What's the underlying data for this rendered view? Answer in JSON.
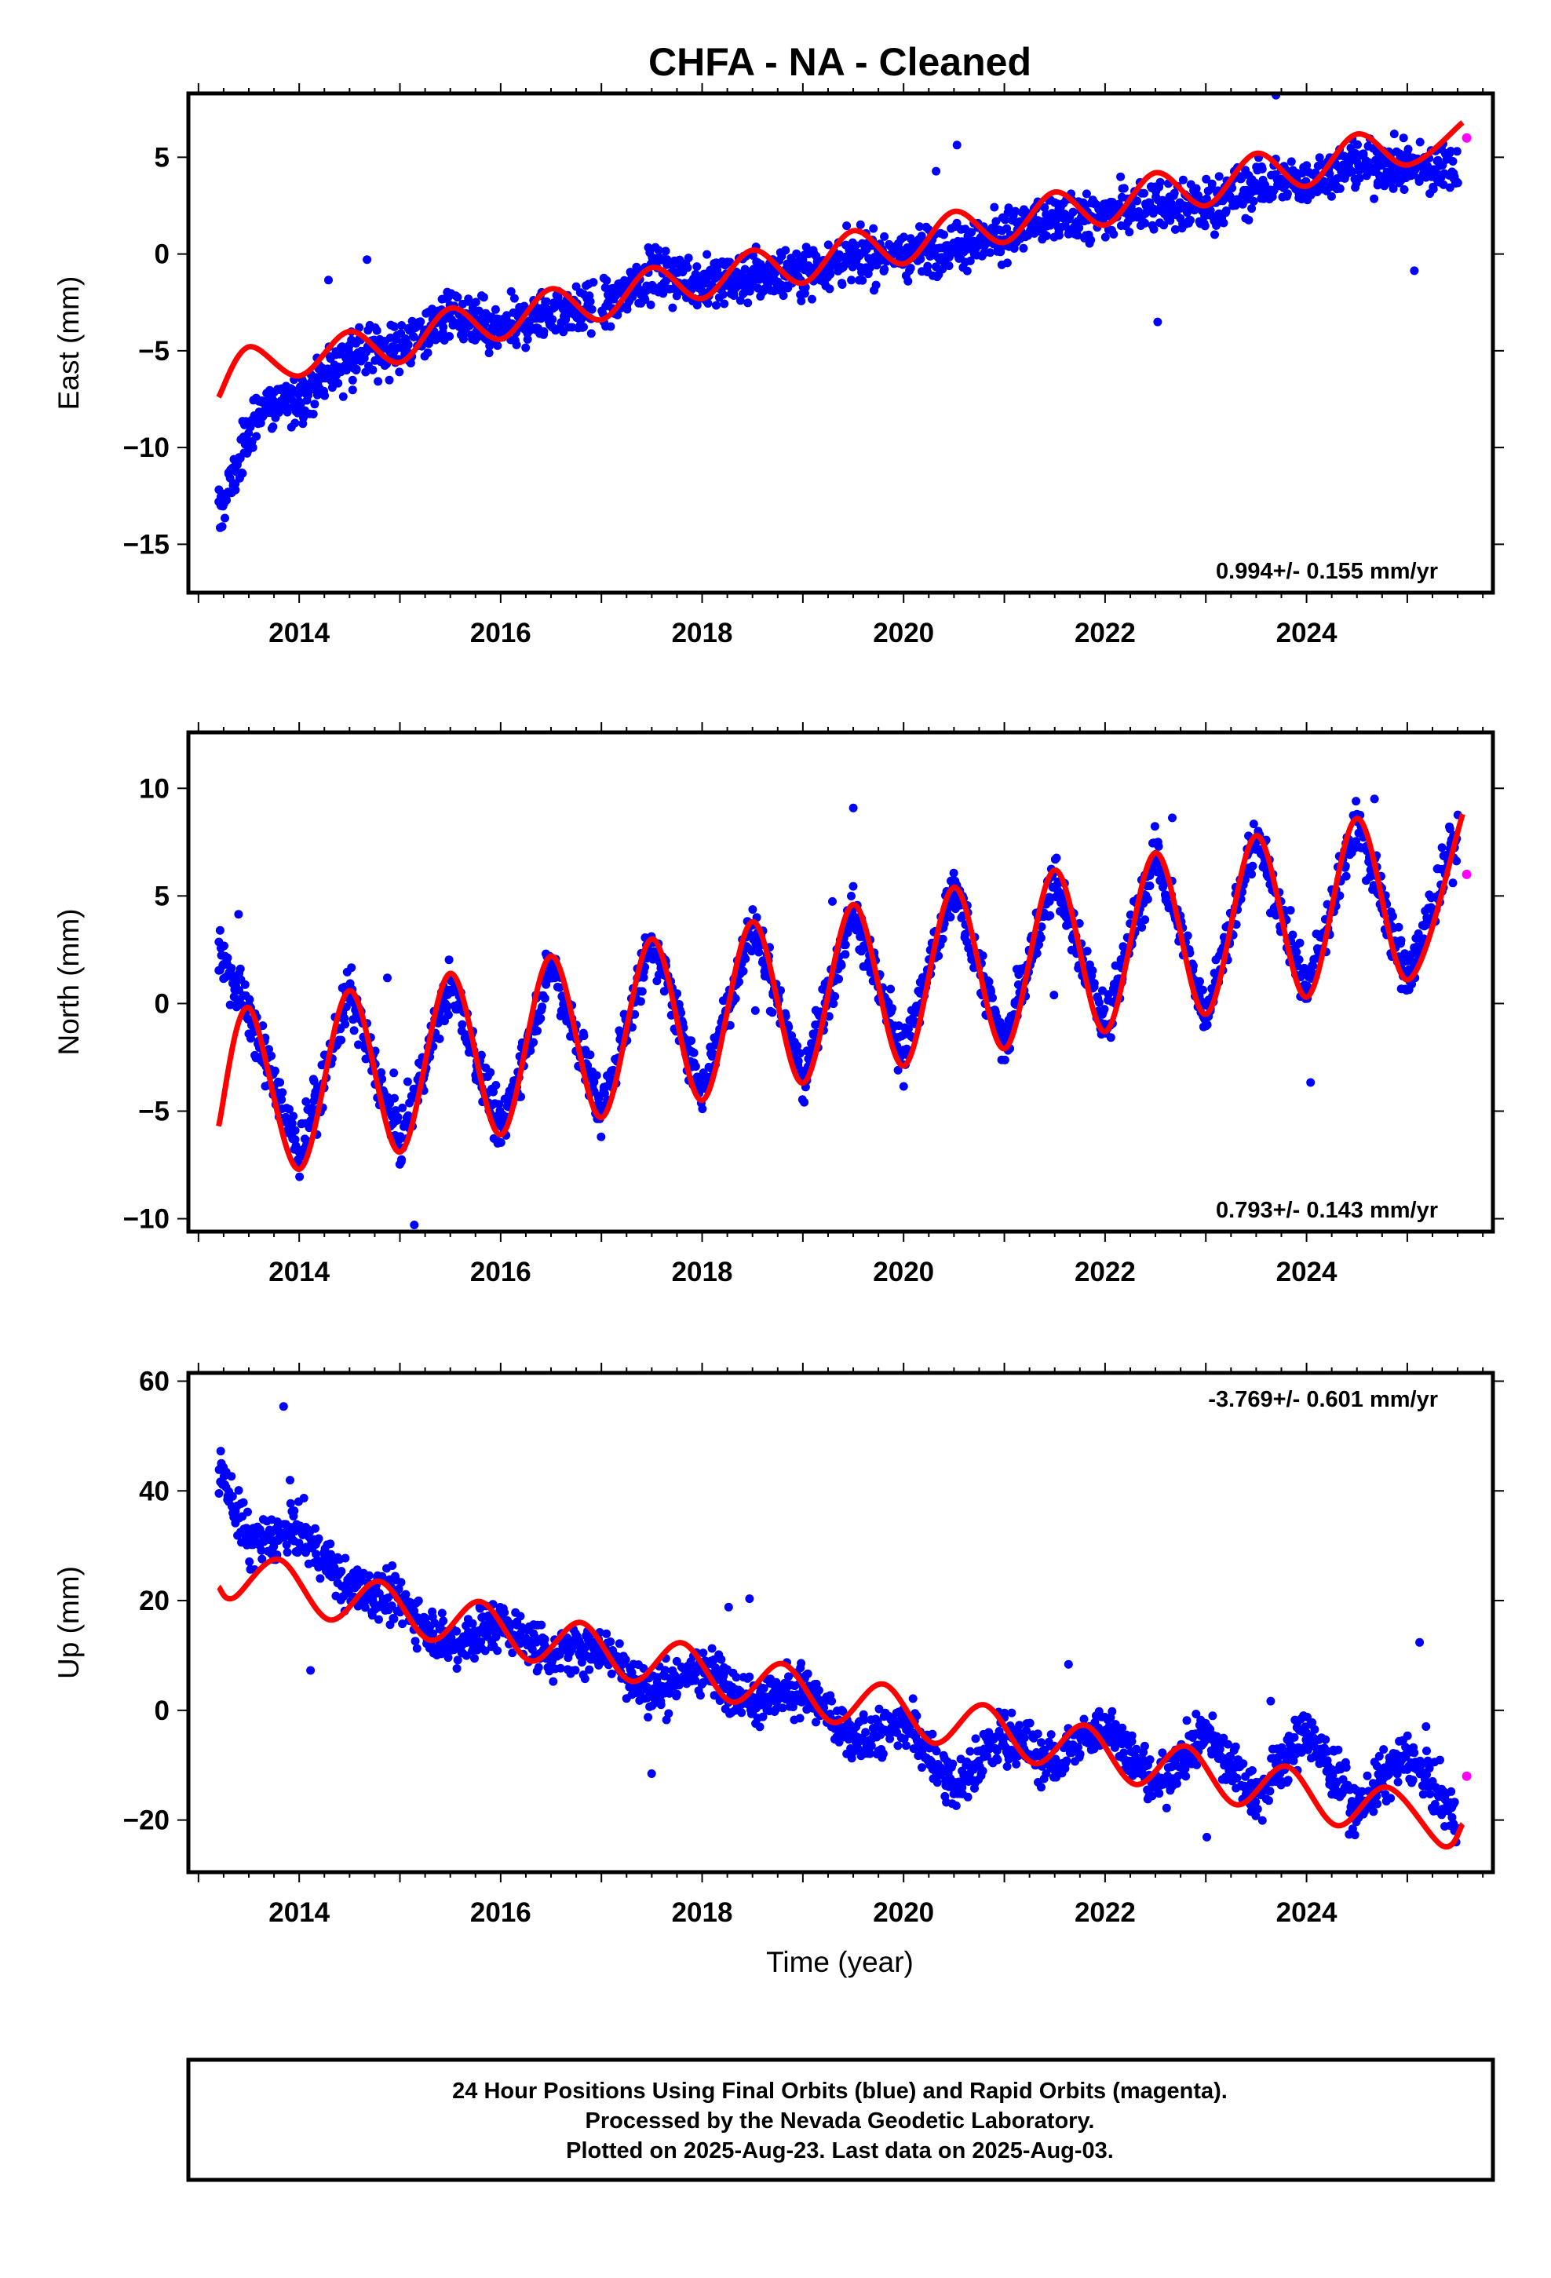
{
  "title": "CHFA  - NA - Cleaned",
  "xlabel": "Time (year)",
  "footer": {
    "line1": "24 Hour Positions Using Final Orbits (blue) and Rapid Orbits (magenta).",
    "line2": "Processed by the Nevada Geodetic Laboratory.",
    "line3": "Plotted on 2025-Aug-23. Last data on 2025-Aug-03."
  },
  "colors": {
    "final_orbits": "#0000ff",
    "rapid_orbits": "#ff00ff",
    "model_fit": "#ff0000",
    "frame": "#000000"
  },
  "chart_data": [
    {
      "type": "scatter",
      "component": "east",
      "ylabel": "East (mm)",
      "xlim": [
        2012.9,
        2025.85
      ],
      "ylim": [
        -17.5,
        8.3
      ],
      "x_ticks": [
        2014,
        2016,
        2018,
        2020,
        2022,
        2024
      ],
      "y_ticks": [
        -15,
        -10,
        -5,
        0,
        5
      ],
      "y_tick_labels": [
        "−15",
        "−10",
        "−5",
        "0",
        "5"
      ],
      "rate_text": "0.994+/- 0.155 mm/yr",
      "rate_position": "bottom-right",
      "final_orbits_trend": {
        "x": [
          2013.2,
          2013.6,
          2014.0,
          2014.5,
          2015.0,
          2015.5,
          2016.0,
          2016.5,
          2017.0,
          2017.5,
          2018.0,
          2018.5,
          2019.0,
          2019.5,
          2020.0,
          2020.5,
          2021.0,
          2021.5,
          2022.0,
          2022.5,
          2023.0,
          2023.5,
          2024.0,
          2024.5,
          2025.0,
          2025.5
        ],
        "y": [
          -13.5,
          -8.0,
          -7.5,
          -5.2,
          -4.8,
          -3.2,
          -4.0,
          -3.0,
          -2.8,
          -1.0,
          -1.5,
          -1.2,
          -0.8,
          -0.2,
          0.0,
          0.5,
          1.0,
          1.8,
          2.0,
          2.6,
          2.5,
          3.5,
          3.8,
          4.6,
          4.5,
          4.4
        ]
      },
      "model_fit": {
        "x": [
          2013.2,
          2013.5,
          2014.0,
          2014.5,
          2015.0,
          2015.5,
          2016.0,
          2016.5,
          2017.0,
          2017.5,
          2018.0,
          2018.5,
          2019.0,
          2019.5,
          2020.0,
          2020.5,
          2021.0,
          2021.5,
          2022.0,
          2022.5,
          2023.0,
          2023.5,
          2024.0,
          2024.5,
          2025.0,
          2025.55
        ],
        "y": [
          -7.4,
          -4.8,
          -6.3,
          -4.0,
          -5.6,
          -2.8,
          -4.4,
          -1.8,
          -3.4,
          -0.7,
          -2.3,
          0.2,
          -1.5,
          1.2,
          -0.5,
          2.2,
          0.6,
          3.2,
          1.5,
          4.2,
          2.5,
          5.2,
          3.5,
          6.2,
          4.6,
          6.8
        ]
      },
      "rapid_orbits": {
        "x": [
          2025.59
        ],
        "y": [
          6.0
        ]
      }
    },
    {
      "type": "scatter",
      "component": "north",
      "ylabel": "North (mm)",
      "xlim": [
        2012.9,
        2025.85
      ],
      "ylim": [
        -10.6,
        12.6
      ],
      "x_ticks": [
        2014,
        2016,
        2018,
        2020,
        2022,
        2024
      ],
      "y_ticks": [
        -10,
        -5,
        0,
        5,
        10
      ],
      "y_tick_labels": [
        "−10",
        "−5",
        "0",
        "5",
        "10"
      ],
      "rate_text": "0.793+/- 0.143 mm/yr",
      "rate_position": "bottom-right",
      "final_orbits_trend": {
        "x": [
          2013.2,
          2013.5,
          2014.0,
          2014.5,
          2015.0,
          2015.5,
          2016.0,
          2016.5,
          2017.0,
          2017.5,
          2018.0,
          2018.5,
          2019.0,
          2019.5,
          2020.0,
          2020.5,
          2021.0,
          2021.5,
          2022.0,
          2022.5,
          2023.0,
          2023.5,
          2024.0,
          2024.5,
          2025.0,
          2025.5
        ],
        "y": [
          2.5,
          -0.5,
          -7.0,
          0.5,
          -6.5,
          1.0,
          -6.0,
          2.0,
          -5.0,
          3.0,
          -4.0,
          3.8,
          -3.5,
          4.5,
          -2.5,
          5.4,
          -2.0,
          6.0,
          -1.0,
          7.0,
          -0.5,
          7.8,
          0.5,
          8.5,
          1.0,
          8.0
        ]
      },
      "model_fit": {
        "x": [
          2013.2,
          2013.5,
          2014.0,
          2014.5,
          2015.0,
          2015.5,
          2016.0,
          2016.5,
          2017.0,
          2017.5,
          2018.0,
          2018.5,
          2019.0,
          2019.5,
          2020.0,
          2020.5,
          2021.0,
          2021.5,
          2022.0,
          2022.5,
          2023.0,
          2023.5,
          2024.0,
          2024.5,
          2025.0,
          2025.55
        ],
        "y": [
          -5.7,
          -0.2,
          -7.7,
          0.6,
          -6.9,
          1.4,
          -6.1,
          2.2,
          -5.3,
          3.0,
          -4.5,
          3.8,
          -3.7,
          4.6,
          -2.9,
          5.4,
          -2.1,
          6.2,
          -1.3,
          7.0,
          -0.5,
          7.8,
          0.3,
          8.6,
          1.1,
          8.8
        ]
      },
      "rapid_orbits": {
        "x": [
          2025.59
        ],
        "y": [
          6.0
        ]
      }
    },
    {
      "type": "scatter",
      "component": "up",
      "ylabel": "Up (mm)",
      "xlim": [
        2012.9,
        2025.85
      ],
      "ylim": [
        -29.5,
        61.5
      ],
      "x_ticks": [
        2014,
        2016,
        2018,
        2020,
        2022,
        2024
      ],
      "y_ticks": [
        -20,
        0,
        20,
        40,
        60
      ],
      "y_tick_labels": [
        "−20",
        "0",
        "20",
        "40",
        "60"
      ],
      "rate_text": "-3.769+/- 0.601 mm/yr",
      "rate_position": "top-right",
      "final_orbits_trend": {
        "x": [
          2013.2,
          2013.5,
          2014.0,
          2014.5,
          2015.0,
          2015.5,
          2016.0,
          2016.5,
          2017.0,
          2017.5,
          2018.0,
          2018.5,
          2019.0,
          2019.5,
          2020.0,
          2020.5,
          2021.0,
          2021.5,
          2022.0,
          2022.5,
          2023.0,
          2023.5,
          2024.0,
          2024.5,
          2025.0,
          2025.5
        ],
        "y": [
          45.0,
          30.0,
          33.0,
          22.0,
          20.0,
          12.0,
          16.0,
          10.0,
          12.0,
          3.0,
          8.0,
          2.0,
          4.0,
          -6.0,
          -2.0,
          -14.0,
          -4.0,
          -10.0,
          -2.0,
          -14.0,
          -4.0,
          -16.0,
          -4.0,
          -18.0,
          -8.0,
          -20.0
        ]
      },
      "model_fit": {
        "x": [
          2013.2,
          2013.35,
          2013.8,
          2014.3,
          2014.8,
          2015.3,
          2015.8,
          2016.3,
          2016.8,
          2017.3,
          2017.8,
          2018.3,
          2018.8,
          2019.3,
          2019.8,
          2020.3,
          2020.8,
          2021.3,
          2021.8,
          2022.3,
          2022.8,
          2023.3,
          2023.8,
          2024.3,
          2024.8,
          2025.35,
          2025.55
        ],
        "y": [
          22.5,
          20.5,
          27.5,
          16.5,
          23.5,
          12.8,
          19.8,
          9.0,
          16.0,
          5.3,
          12.3,
          1.5,
          8.5,
          -2.2,
          4.8,
          -6.0,
          1.0,
          -9.7,
          -2.7,
          -13.5,
          -6.5,
          -17.2,
          -10.2,
          -21.0,
          -14.0,
          -24.7,
          -20.7
        ]
      },
      "rapid_orbits": {
        "x": [
          2025.59
        ],
        "y": [
          -12.0
        ]
      }
    }
  ]
}
